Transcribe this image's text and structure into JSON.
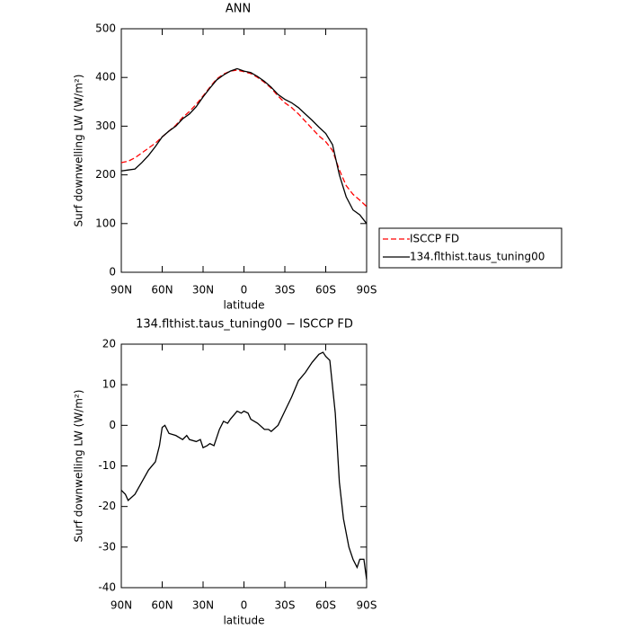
{
  "chart_data": [
    {
      "type": "line",
      "title": "ANN",
      "xlabel": "latitude",
      "ylabel": "Surf downwelling LW (W/m²)",
      "x": [
        90,
        85,
        80,
        75,
        70,
        65,
        60,
        55,
        50,
        45,
        40,
        35,
        30,
        25,
        20,
        15,
        10,
        5,
        0,
        -5,
        -10,
        -15,
        -20,
        -25,
        -30,
        -35,
        -40,
        -45,
        -50,
        -55,
        -60,
        -65,
        -70,
        -75,
        -80,
        -85,
        -90
      ],
      "series": [
        {
          "name": "ISCCP FD",
          "color": "#ff0000",
          "linestyle": "dashed",
          "values": [
            225,
            228,
            235,
            245,
            255,
            265,
            278,
            290,
            302,
            318,
            330,
            345,
            362,
            380,
            397,
            407,
            413,
            415,
            412,
            408,
            400,
            390,
            378,
            362,
            348,
            338,
            325,
            310,
            295,
            280,
            268,
            250,
            210,
            178,
            160,
            148,
            135
          ]
        },
        {
          "name": "134.flthist.taus_tuning00",
          "color": "#000000",
          "linestyle": "solid",
          "values": [
            208,
            210,
            212,
            225,
            240,
            258,
            278,
            290,
            300,
            315,
            325,
            340,
            360,
            378,
            395,
            405,
            413,
            418,
            413,
            410,
            402,
            392,
            380,
            365,
            355,
            348,
            338,
            325,
            312,
            298,
            285,
            262,
            200,
            155,
            128,
            118,
            100
          ]
        }
      ],
      "xlim": [
        90,
        -90
      ],
      "xticks": [
        {
          "value": 90,
          "label": "90N"
        },
        {
          "value": 60,
          "label": "60N"
        },
        {
          "value": 30,
          "label": "30N"
        },
        0,
        {
          "value": -30,
          "label": "30S"
        },
        {
          "value": -60,
          "label": "60S"
        },
        {
          "value": -90,
          "label": "90S"
        }
      ],
      "ylim": [
        0,
        500
      ],
      "yticks": [
        0,
        100,
        200,
        300,
        400,
        500
      ]
    },
    {
      "type": "line",
      "title": "134.flthist.taus_tuning00 − ISCCP FD",
      "xlabel": "latitude",
      "ylabel": "Surf downwelling LW (W/m²)",
      "x": [
        90,
        87,
        85,
        80,
        75,
        70,
        65,
        62,
        60,
        58,
        55,
        50,
        45,
        42,
        40,
        35,
        32,
        30,
        27,
        25,
        22,
        18,
        15,
        12,
        10,
        5,
        2,
        0,
        -3,
        -5,
        -10,
        -15,
        -18,
        -20,
        -25,
        -30,
        -35,
        -40,
        -45,
        -50,
        -55,
        -58,
        -60,
        -63,
        -67,
        -70,
        -73,
        -77,
        -80,
        -83,
        -85,
        -88,
        -90
      ],
      "color": "#000000",
      "values": [
        -16,
        -17,
        -18.5,
        -17,
        -14,
        -11,
        -9,
        -5,
        -0.5,
        0,
        -2,
        -2.5,
        -3.5,
        -2.5,
        -3.5,
        -4,
        -3.5,
        -5.5,
        -5,
        -4.5,
        -5,
        -1,
        1,
        0.5,
        1.5,
        3.5,
        3,
        3.5,
        3,
        1.5,
        0.5,
        -1,
        -1,
        -1.5,
        0,
        3.5,
        7,
        11,
        13,
        15.5,
        17.5,
        18,
        17,
        16,
        3,
        -14,
        -23,
        -30,
        -33,
        -35,
        -33,
        -33,
        -38
      ],
      "xlim": [
        90,
        -90
      ],
      "xticks": [
        {
          "value": 90,
          "label": "90N"
        },
        {
          "value": 60,
          "label": "60N"
        },
        {
          "value": 30,
          "label": "30N"
        },
        0,
        {
          "value": -30,
          "label": "30S"
        },
        {
          "value": -60,
          "label": "60S"
        },
        {
          "value": -90,
          "label": "90S"
        }
      ],
      "ylim": [
        -40,
        20
      ],
      "yticks": [
        -40,
        -30,
        -20,
        -10,
        0,
        10,
        20
      ]
    }
  ]
}
